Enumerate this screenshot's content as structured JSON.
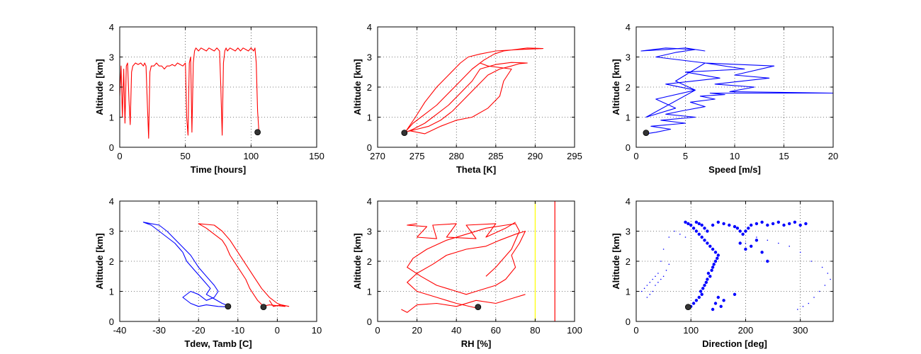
{
  "figure": {
    "background": "#ffffff"
  },
  "colors": {
    "red": "#ff0000",
    "blue": "#0000ff",
    "marker": "#333333",
    "yellow": "#ffff00"
  },
  "chart_data": [
    {
      "type": "line",
      "xlabel": "Time [hours]",
      "ylabel": "Altitude [km]",
      "xlim": [
        0,
        150
      ],
      "ylim": [
        0,
        4
      ],
      "xticks": [
        0,
        50,
        100,
        150
      ],
      "yticks": [
        0,
        1,
        2,
        3,
        4
      ],
      "grid": true,
      "series": [
        {
          "color": "#ff0000",
          "style": "line",
          "x": [
            0,
            1,
            2,
            3,
            4,
            5,
            6,
            7,
            8,
            9,
            10,
            12,
            14,
            16,
            18,
            19,
            20,
            21,
            22,
            23,
            24,
            26,
            28,
            30,
            32,
            34,
            36,
            38,
            40,
            42,
            44,
            46,
            48,
            50,
            51,
            52,
            53,
            54,
            55,
            56,
            57,
            58,
            60,
            62,
            64,
            66,
            68,
            70,
            72,
            74,
            76,
            77,
            78,
            79,
            80,
            81,
            82,
            84,
            86,
            88,
            90,
            92,
            94,
            96,
            98,
            100,
            102,
            103,
            104,
            105,
            106
          ],
          "y": [
            1.7,
            2.7,
            1.0,
            2.6,
            0.8,
            2.7,
            2.8,
            1.6,
            0.75,
            2.5,
            2.7,
            2.8,
            2.75,
            2.8,
            2.7,
            2.8,
            2.7,
            1.5,
            0.3,
            2.5,
            2.7,
            2.7,
            2.8,
            2.7,
            2.7,
            2.6,
            2.7,
            2.7,
            2.75,
            2.7,
            2.8,
            2.75,
            2.7,
            2.8,
            1.0,
            0.4,
            2.8,
            3.0,
            0.5,
            2.8,
            3.2,
            3.3,
            3.2,
            3.3,
            3.25,
            3.2,
            3.3,
            3.25,
            3.2,
            3.3,
            3.2,
            2.0,
            0.4,
            2.8,
            3.2,
            3.3,
            3.2,
            3.3,
            3.25,
            3.2,
            3.3,
            3.2,
            3.3,
            3.25,
            3.2,
            3.3,
            3.2,
            3.3,
            2.8,
            1.2,
            0.5
          ]
        }
      ],
      "markers": [
        {
          "x": 105,
          "y": 0.5
        }
      ]
    },
    {
      "type": "line",
      "xlabel": "Theta [K]",
      "ylabel": "Altitude [km]",
      "xlim": [
        270,
        295
      ],
      "ylim": [
        0,
        4
      ],
      "xticks": [
        270,
        275,
        280,
        285,
        290,
        295
      ],
      "yticks": [
        0,
        1,
        2,
        3,
        4
      ],
      "grid": true,
      "series": [
        {
          "color": "#ff0000",
          "style": "line",
          "x": [
            273.4,
            274.5,
            276,
            277.5,
            279,
            280.5,
            282,
            283.5,
            284.8,
            286,
            287.5,
            289,
            291,
            288,
            285,
            283,
            281.5,
            280.5,
            279,
            277.5,
            276,
            274.8,
            273.5
          ],
          "y": [
            0.48,
            0.8,
            1.1,
            1.4,
            1.8,
            2.2,
            2.6,
            2.9,
            3.1,
            3.2,
            3.25,
            3.3,
            3.28,
            3.25,
            3.2,
            3.1,
            3.0,
            2.8,
            2.4,
            2.0,
            1.5,
            1.0,
            0.5
          ]
        },
        {
          "color": "#ff0000",
          "style": "line",
          "x": [
            273.4,
            275,
            276.5,
            278,
            279.5,
            281,
            282.5,
            284,
            285.5,
            287,
            288,
            289,
            287,
            285,
            283,
            282,
            280.5,
            279,
            277.5,
            276,
            274.5,
            273.4
          ],
          "y": [
            0.5,
            0.6,
            0.7,
            0.9,
            1.2,
            1.6,
            2.0,
            2.4,
            2.6,
            2.7,
            2.78,
            2.8,
            2.82,
            2.75,
            2.6,
            2.2,
            1.8,
            1.4,
            1.1,
            0.8,
            0.6,
            0.48
          ]
        },
        {
          "color": "#ff0000",
          "style": "line",
          "x": [
            274,
            276,
            278,
            280,
            282,
            284,
            285.5,
            286,
            287,
            284,
            283
          ],
          "y": [
            0.55,
            0.45,
            0.7,
            0.9,
            1.0,
            1.3,
            1.7,
            2.2,
            2.6,
            2.7,
            2.8
          ]
        }
      ],
      "markers": [
        {
          "x": 273.4,
          "y": 0.48
        }
      ]
    },
    {
      "type": "line",
      "xlabel": "Speed [m/s]",
      "ylabel": "Altitude [km]",
      "xlim": [
        0,
        20
      ],
      "ylim": [
        0,
        4
      ],
      "xticks": [
        0,
        5,
        10,
        15,
        20
      ],
      "yticks": [
        0,
        1,
        2,
        3,
        4
      ],
      "grid": true,
      "series": [
        {
          "color": "#0000ff",
          "style": "line",
          "x": [
            1.0,
            2.0,
            3.5,
            1.5,
            5.0,
            2.5,
            6.0,
            3.0,
            4.5,
            7.0,
            5.5,
            8.0,
            6.5,
            9.0,
            7.5,
            10.5,
            8.5,
            20.0,
            9.5,
            12.0,
            8.0,
            13.5,
            10.0,
            14.0,
            7.0,
            11.0,
            5.0,
            8.5,
            3.0,
            6.0,
            1.0,
            4.0,
            2.0,
            6.0,
            4.0,
            7.0,
            2.0,
            4.0,
            6.0,
            3.0,
            0.5,
            3.0,
            5.0,
            7.0
          ],
          "y": [
            0.45,
            0.5,
            0.6,
            0.7,
            0.8,
            0.9,
            1.0,
            1.1,
            1.2,
            1.35,
            1.5,
            1.6,
            1.7,
            1.75,
            1.8,
            1.8,
            1.8,
            1.8,
            1.85,
            2.0,
            2.1,
            2.3,
            2.4,
            2.7,
            2.8,
            2.6,
            2.5,
            2.3,
            2.1,
            1.9,
            1.0,
            1.3,
            1.6,
            1.9,
            2.2,
            2.8,
            3.0,
            3.15,
            3.25,
            3.3,
            3.2,
            3.25,
            3.3,
            3.2
          ]
        }
      ],
      "markers": [
        {
          "x": 1.0,
          "y": 0.48
        }
      ]
    },
    {
      "type": "line",
      "xlabel": "Tdew, Tamb [C]",
      "ylabel": "Altitude [km]",
      "xlim": [
        -40,
        10
      ],
      "ylim": [
        0,
        4
      ],
      "xticks": [
        -40,
        -30,
        -20,
        -10,
        0,
        10
      ],
      "yticks": [
        0,
        1,
        2,
        3,
        4
      ],
      "grid": true,
      "series": [
        {
          "color": "#0000ff",
          "style": "line",
          "x": [
            -12,
            -14,
            -16,
            -18,
            -17,
            -19,
            -21,
            -23,
            -24,
            -26,
            -28,
            -30,
            -32,
            -34,
            -30,
            -28,
            -25,
            -22,
            -20,
            -18,
            -16,
            -15,
            -16,
            -18,
            -20,
            -22,
            -24,
            -22,
            -20,
            -18,
            -15,
            -12
          ],
          "y": [
            0.5,
            0.6,
            0.75,
            0.9,
            1.1,
            1.4,
            1.7,
            2.0,
            2.3,
            2.6,
            2.8,
            3.0,
            3.2,
            3.3,
            3.2,
            3.0,
            2.6,
            2.2,
            1.8,
            1.5,
            1.2,
            1.0,
            0.8,
            0.7,
            0.9,
            1.0,
            0.8,
            0.6,
            0.5,
            0.55,
            0.5,
            0.48
          ]
        },
        {
          "color": "#ff0000",
          "style": "line",
          "x": [
            -3.5,
            -5,
            -6,
            -7,
            -8,
            -10,
            -12,
            -13,
            -14,
            -16,
            -18,
            -20,
            -16,
            -14,
            -12,
            -10,
            -8,
            -6,
            -4,
            -2,
            0,
            2,
            -2,
            -4,
            -3.5
          ],
          "y": [
            0.5,
            0.7,
            0.9,
            1.1,
            1.4,
            1.8,
            2.2,
            2.5,
            2.7,
            2.9,
            3.1,
            3.25,
            3.2,
            3.0,
            2.7,
            2.3,
            1.9,
            1.5,
            1.1,
            0.8,
            0.6,
            0.5,
            0.55,
            0.5,
            0.48
          ]
        },
        {
          "color": "#ff0000",
          "style": "line",
          "x": [
            -2,
            -1,
            1,
            3
          ],
          "y": [
            0.7,
            0.5,
            0.55,
            0.5
          ]
        }
      ],
      "markers": [
        {
          "x": -12.5,
          "y": 0.5
        },
        {
          "x": -3.5,
          "y": 0.48
        }
      ]
    },
    {
      "type": "line",
      "xlabel": "RH [%]",
      "ylabel": "Altitude [km]",
      "xlim": [
        0,
        100
      ],
      "ylim": [
        0,
        4
      ],
      "xticks": [
        0,
        20,
        40,
        60,
        80,
        100
      ],
      "yticks": [
        0,
        1,
        2,
        3,
        4
      ],
      "grid": true,
      "vlines": [
        {
          "x": 80,
          "color": "#ffff00"
        },
        {
          "x": 90,
          "color": "#ff0000"
        }
      ],
      "series": [
        {
          "color": "#ff0000",
          "style": "line",
          "x": [
            50,
            40,
            30,
            20,
            15,
            20,
            28,
            35,
            45,
            55,
            62,
            70,
            75,
            72,
            68,
            70,
            65,
            60,
            50,
            45,
            40,
            30,
            22,
            15,
            18,
            25,
            35,
            45,
            55,
            65,
            70,
            72,
            68,
            60,
            55
          ],
          "y": [
            0.45,
            0.6,
            0.8,
            1.0,
            1.3,
            1.6,
            1.9,
            2.2,
            2.4,
            2.5,
            2.7,
            2.9,
            3.0,
            2.6,
            2.2,
            1.8,
            1.4,
            1.2,
            1.0,
            0.9,
            1.0,
            1.2,
            1.5,
            1.8,
            2.1,
            2.4,
            2.7,
            2.9,
            3.1,
            3.2,
            3.25,
            3.0,
            2.4,
            1.8,
            1.5
          ]
        },
        {
          "color": "#ff0000",
          "style": "line",
          "x": [
            20,
            15,
            25,
            20,
            30,
            28,
            40,
            35,
            50,
            45,
            60,
            55,
            65,
            70
          ],
          "y": [
            3.25,
            3.2,
            3.15,
            2.8,
            2.75,
            3.2,
            3.25,
            2.8,
            2.75,
            3.2,
            3.25,
            2.8,
            3.1,
            3.3
          ]
        },
        {
          "color": "#ff0000",
          "style": "line",
          "x": [
            12,
            15,
            20,
            30,
            40,
            50,
            60,
            70,
            75
          ],
          "y": [
            0.4,
            0.3,
            0.55,
            0.6,
            0.5,
            0.7,
            0.6,
            0.8,
            0.9
          ]
        }
      ],
      "markers": [
        {
          "x": 51,
          "y": 0.48
        }
      ]
    },
    {
      "type": "scatter",
      "xlabel": "Direction [deg]",
      "ylabel": "Altitude [km]",
      "xlim": [
        0,
        360
      ],
      "ylim": [
        0,
        4
      ],
      "xticks": [
        0,
        100,
        200,
        300
      ],
      "yticks": [
        0,
        1,
        2,
        3,
        4
      ],
      "grid": true,
      "series": [
        {
          "color": "#0000ff",
          "style": "points",
          "x": [
            100,
            105,
            110,
            115,
            120,
            118,
            122,
            125,
            128,
            130,
            135,
            132,
            138,
            140,
            142,
            145,
            148,
            150,
            145,
            140,
            135,
            130,
            125,
            120,
            115,
            110,
            105,
            100,
            95,
            90,
            110,
            115,
            120,
            125,
            130,
            140,
            150,
            160,
            170,
            180,
            185,
            190,
            195,
            200,
            205,
            210,
            220,
            230,
            240,
            250,
            260,
            270,
            280,
            290,
            300,
            310,
            140,
            145,
            150,
            155,
            160,
            180,
            190,
            200,
            210,
            220,
            230,
            240
          ],
          "y": [
            0.5,
            0.6,
            0.7,
            0.8,
            0.9,
            1.0,
            1.1,
            1.2,
            1.3,
            1.4,
            1.5,
            1.6,
            1.7,
            1.8,
            1.9,
            2.0,
            2.1,
            2.2,
            2.3,
            2.4,
            2.5,
            2.6,
            2.7,
            2.8,
            2.9,
            3.0,
            3.1,
            3.2,
            3.25,
            3.3,
            3.3,
            3.25,
            3.2,
            3.1,
            3.0,
            3.2,
            3.3,
            3.25,
            3.2,
            3.15,
            3.1,
            3.0,
            2.9,
            3.0,
            3.1,
            3.2,
            3.25,
            3.3,
            3.2,
            3.25,
            3.3,
            3.2,
            3.25,
            3.3,
            3.2,
            3.25,
            0.4,
            0.6,
            0.8,
            0.5,
            0.7,
            0.9,
            2.6,
            2.4,
            2.5,
            2.7,
            2.3,
            2.0
          ]
        },
        {
          "color": "#0000ff",
          "style": "dots",
          "x": [
            10,
            15,
            20,
            25,
            30,
            35,
            40,
            45,
            50,
            60,
            70,
            80,
            90,
            20,
            25,
            30,
            35,
            40,
            45,
            50,
            55,
            60,
            200,
            220,
            240,
            260,
            280,
            300,
            320,
            340,
            350,
            355,
            345,
            335,
            325,
            315,
            305,
            295
          ],
          "y": [
            1.0,
            1.1,
            1.2,
            1.3,
            1.4,
            1.5,
            1.6,
            2.0,
            2.4,
            2.8,
            3.0,
            2.9,
            2.8,
            0.8,
            0.9,
            1.0,
            1.2,
            1.3,
            1.4,
            1.5,
            1.7,
            1.9,
            2.6,
            2.8,
            2.7,
            2.6,
            2.5,
            2.3,
            2.0,
            1.8,
            1.6,
            1.4,
            1.2,
            1.0,
            0.8,
            0.6,
            0.5,
            0.4
          ]
        }
      ],
      "markers": [
        {
          "x": 95,
          "y": 0.48
        }
      ]
    }
  ]
}
